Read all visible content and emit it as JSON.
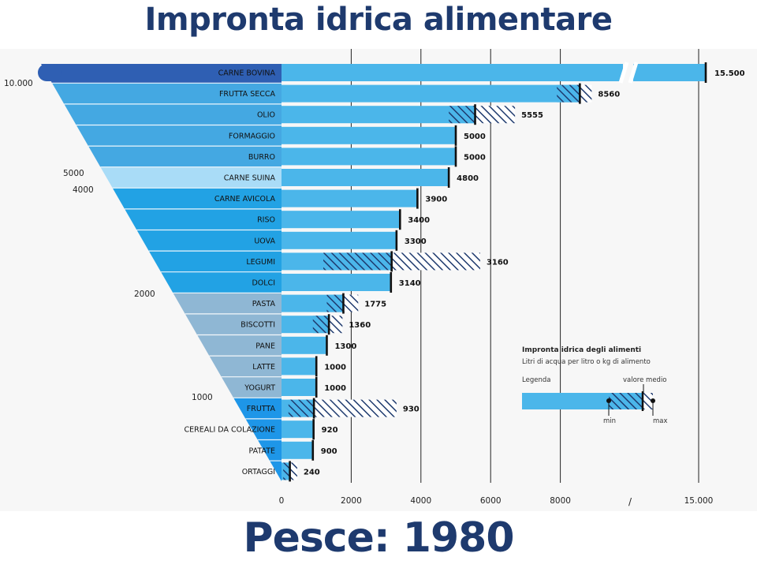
{
  "title": "Impronta idrica alimentare",
  "caption": "Pesce: 1980",
  "colors": {
    "title": "#1e3a6e",
    "bar": "#4bb6ea",
    "bar_highlight_top": "#2f5fb3",
    "bar_highlight_pale": "#a9dcf7",
    "hatch": "#1e3a6e",
    "funnel_dark": "#3a8fd2",
    "funnel_mid": "#44a8e2",
    "funnel_grey": "#8fb7d4",
    "funnel_blue": "#1e96e8",
    "funnel_deep": "#3aa0e6",
    "background_panel": "#f7f7f7"
  },
  "chart_data": {
    "type": "bar",
    "orientation": "horizontal",
    "unit": "Litri di acqua per litro o kg di alimento",
    "categories": [
      "CARNE BOVINA",
      "FRUTTA SECCA",
      "OLIO",
      "FORMAGGIO",
      "BURRO",
      "CARNE SUINA",
      "CARNE AVICOLA",
      "RISO",
      "UOVA",
      "LEGUMI",
      "DOLCI",
      "PASTA",
      "BISCOTTI",
      "PANE",
      "LATTE",
      "YOGURT",
      "FRUTTA",
      "CEREALI DA COLAZIONE",
      "PATATE",
      "ORTAGGI"
    ],
    "values": [
      15500,
      8560,
      5555,
      5000,
      5000,
      4800,
      3900,
      3400,
      3300,
      3160,
      3140,
      1775,
      1360,
      1300,
      1000,
      1000,
      930,
      920,
      900,
      240
    ],
    "value_labels": [
      "15.500",
      "8560",
      "5555",
      "5000",
      "5000",
      "4800",
      "3900",
      "3400",
      "3300",
      "3160",
      "3140",
      "1775",
      "1360",
      "1300",
      "1000",
      "1000",
      "930",
      "920",
      "900",
      "240"
    ],
    "ranges": [
      {
        "category": "FRUTTA SECCA",
        "min": 7900,
        "max": 8900
      },
      {
        "category": "OLIO",
        "min": 4800,
        "max": 6700
      },
      {
        "category": "LEGUMI",
        "min": 1200,
        "max": 5700
      },
      {
        "category": "PASTA",
        "min": 1300,
        "max": 2200
      },
      {
        "category": "BISCOTTI",
        "min": 900,
        "max": 1750
      },
      {
        "category": "FRUTTA",
        "min": 200,
        "max": 3300
      },
      {
        "category": "ORTAGGI",
        "min": 50,
        "max": 450
      }
    ],
    "x_ticks": [
      0,
      2000,
      4000,
      6000,
      8000,
      15000
    ],
    "x_tick_labels": [
      "0",
      "2000",
      "4000",
      "6000",
      "8000",
      "15.000"
    ],
    "axis_break": true,
    "xlim": [
      0,
      9850
    ],
    "funnel_labels": [
      "10.000",
      "5000",
      "4000",
      "2000",
      "1000"
    ],
    "grid": true
  },
  "legend": {
    "title": "Impronta idrica degli alimenti",
    "subtitle": "Litri di acqua per litro o kg di alimento",
    "legend_label": "Legenda",
    "mean_label": "valore medio",
    "min_label": "min",
    "max_label": "max",
    "axis_break_mark": "/"
  }
}
